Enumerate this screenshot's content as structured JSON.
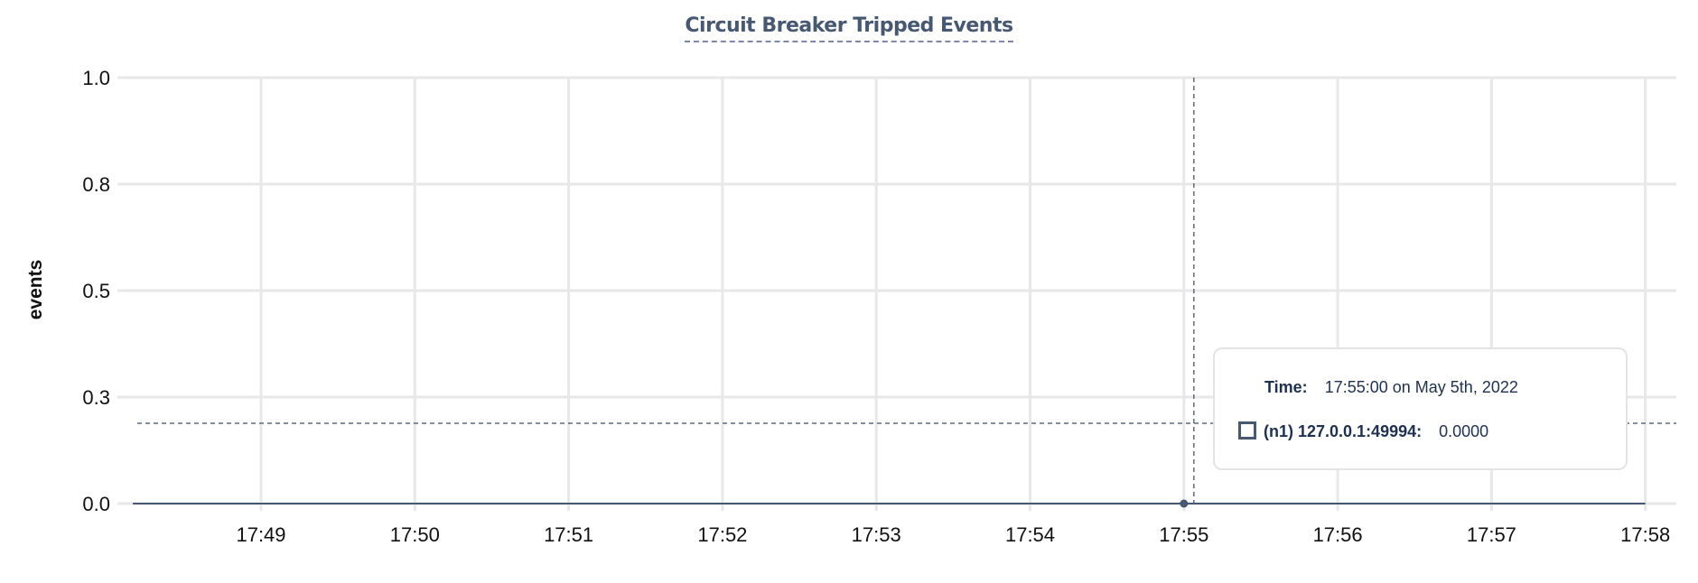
{
  "chart_data": {
    "type": "line",
    "title": "Circuit Breaker Tripped Events",
    "xlabel": "",
    "ylabel": "events",
    "x_tick_labels": [
      "17:49",
      "17:50",
      "17:51",
      "17:52",
      "17:53",
      "17:54",
      "17:55",
      "17:56",
      "17:57",
      "17:58"
    ],
    "y_ticks": [
      0,
      0.25,
      0.5,
      0.75,
      1.0
    ],
    "y_tick_labels": [
      "0.0",
      "0.3",
      "0.5",
      "0.8",
      "1.0"
    ],
    "ylim": [
      0,
      1.0
    ],
    "xlim": [
      "17:48:00",
      "17:58:15"
    ],
    "grid": true,
    "series": [
      {
        "name": "(n1) 127.0.0.1:49994",
        "color": "#475872",
        "x": [
          "17:48:10",
          "17:49:00",
          "17:50:00",
          "17:51:00",
          "17:52:00",
          "17:53:00",
          "17:54:00",
          "17:55:00",
          "17:56:00",
          "17:57:00",
          "17:58:00"
        ],
        "y": [
          0,
          0,
          0,
          0,
          0,
          0,
          0,
          0,
          0,
          0,
          0
        ]
      }
    ],
    "hover": {
      "x": "17:55:00",
      "y": 0
    }
  },
  "tooltip": {
    "time_label": "Time:",
    "time_value": "17:55:00 on May 5th, 2022",
    "series_label": "(n1) 127.0.0.1:49994:",
    "series_value": "0.0000"
  }
}
